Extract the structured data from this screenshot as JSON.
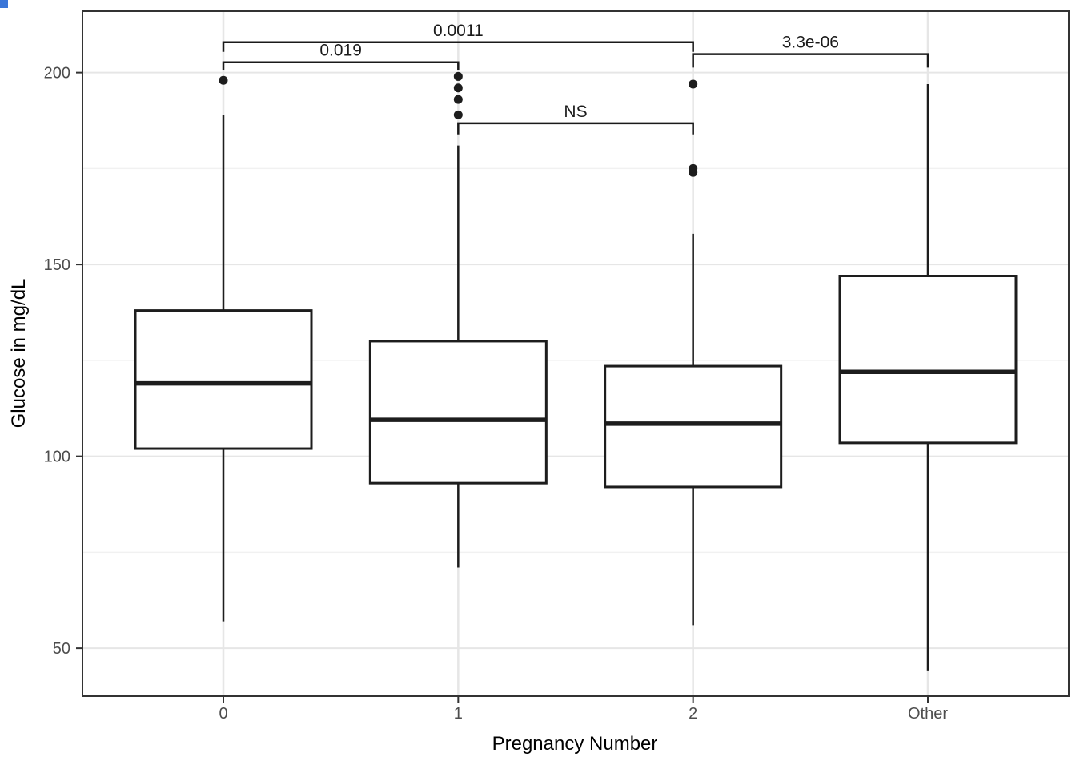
{
  "page": {
    "background": "#ffffff"
  },
  "artifact": {
    "color": "#3a76d8"
  },
  "chart_data": {
    "type": "boxplot",
    "title": "",
    "xlabel": "Pregnancy Number",
    "ylabel": "Glucose in mg/dL",
    "categories": [
      "0",
      "1",
      "2",
      "Other"
    ],
    "y_ticks": [
      50,
      100,
      150,
      200
    ],
    "y_minor_gridlines": [
      75,
      125,
      175
    ],
    "ylim": [
      37.5,
      216
    ],
    "grid": "horizontal major+minor, vertical at category centers",
    "legend": false,
    "box_width_fraction": 0.75,
    "series": [
      {
        "category": "0",
        "min": 57,
        "q1": 102,
        "median": 119,
        "q3": 138,
        "max": 189,
        "outliers": [
          198
        ]
      },
      {
        "category": "1",
        "min": 71,
        "q1": 93,
        "median": 109.5,
        "q3": 130,
        "max": 181,
        "outliers": [
          189,
          193,
          196,
          199
        ]
      },
      {
        "category": "2",
        "min": 56,
        "q1": 92,
        "median": 108.5,
        "q3": 123.5,
        "max": 158,
        "outliers": [
          174,
          175,
          197
        ]
      },
      {
        "category": "Other",
        "min": 44,
        "q1": 103.5,
        "median": 122,
        "q3": 147,
        "max": 197,
        "outliers": []
      }
    ],
    "comparisons": [
      {
        "group1": "0",
        "group2": "1",
        "label": "0.019",
        "bar_y": 202.7,
        "tip": 2.1
      },
      {
        "group1": "0",
        "group2": "2",
        "label": "0.0011",
        "bar_y": 207.9,
        "tip": 2.5
      },
      {
        "group1": "1",
        "group2": "2",
        "label": "NS",
        "bar_y": 186.8,
        "tip": 2.9
      },
      {
        "group1": "2",
        "group2": "Other",
        "label": "3.3e-06",
        "bar_y": 204.8,
        "tip": 3.5
      }
    ],
    "colors": {
      "box_stroke": "#1d1d1d",
      "box_fill": "#ffffff",
      "outlier": "#1d1d1d",
      "grid_major": "#e6e6e6",
      "grid_minor": "#f1f1f1",
      "panel_border": "#333333",
      "axis_text": "#4d4d4d",
      "axis_title": "#000000",
      "significance": "#1a1a1a",
      "panel_background": "#ffffff"
    }
  }
}
